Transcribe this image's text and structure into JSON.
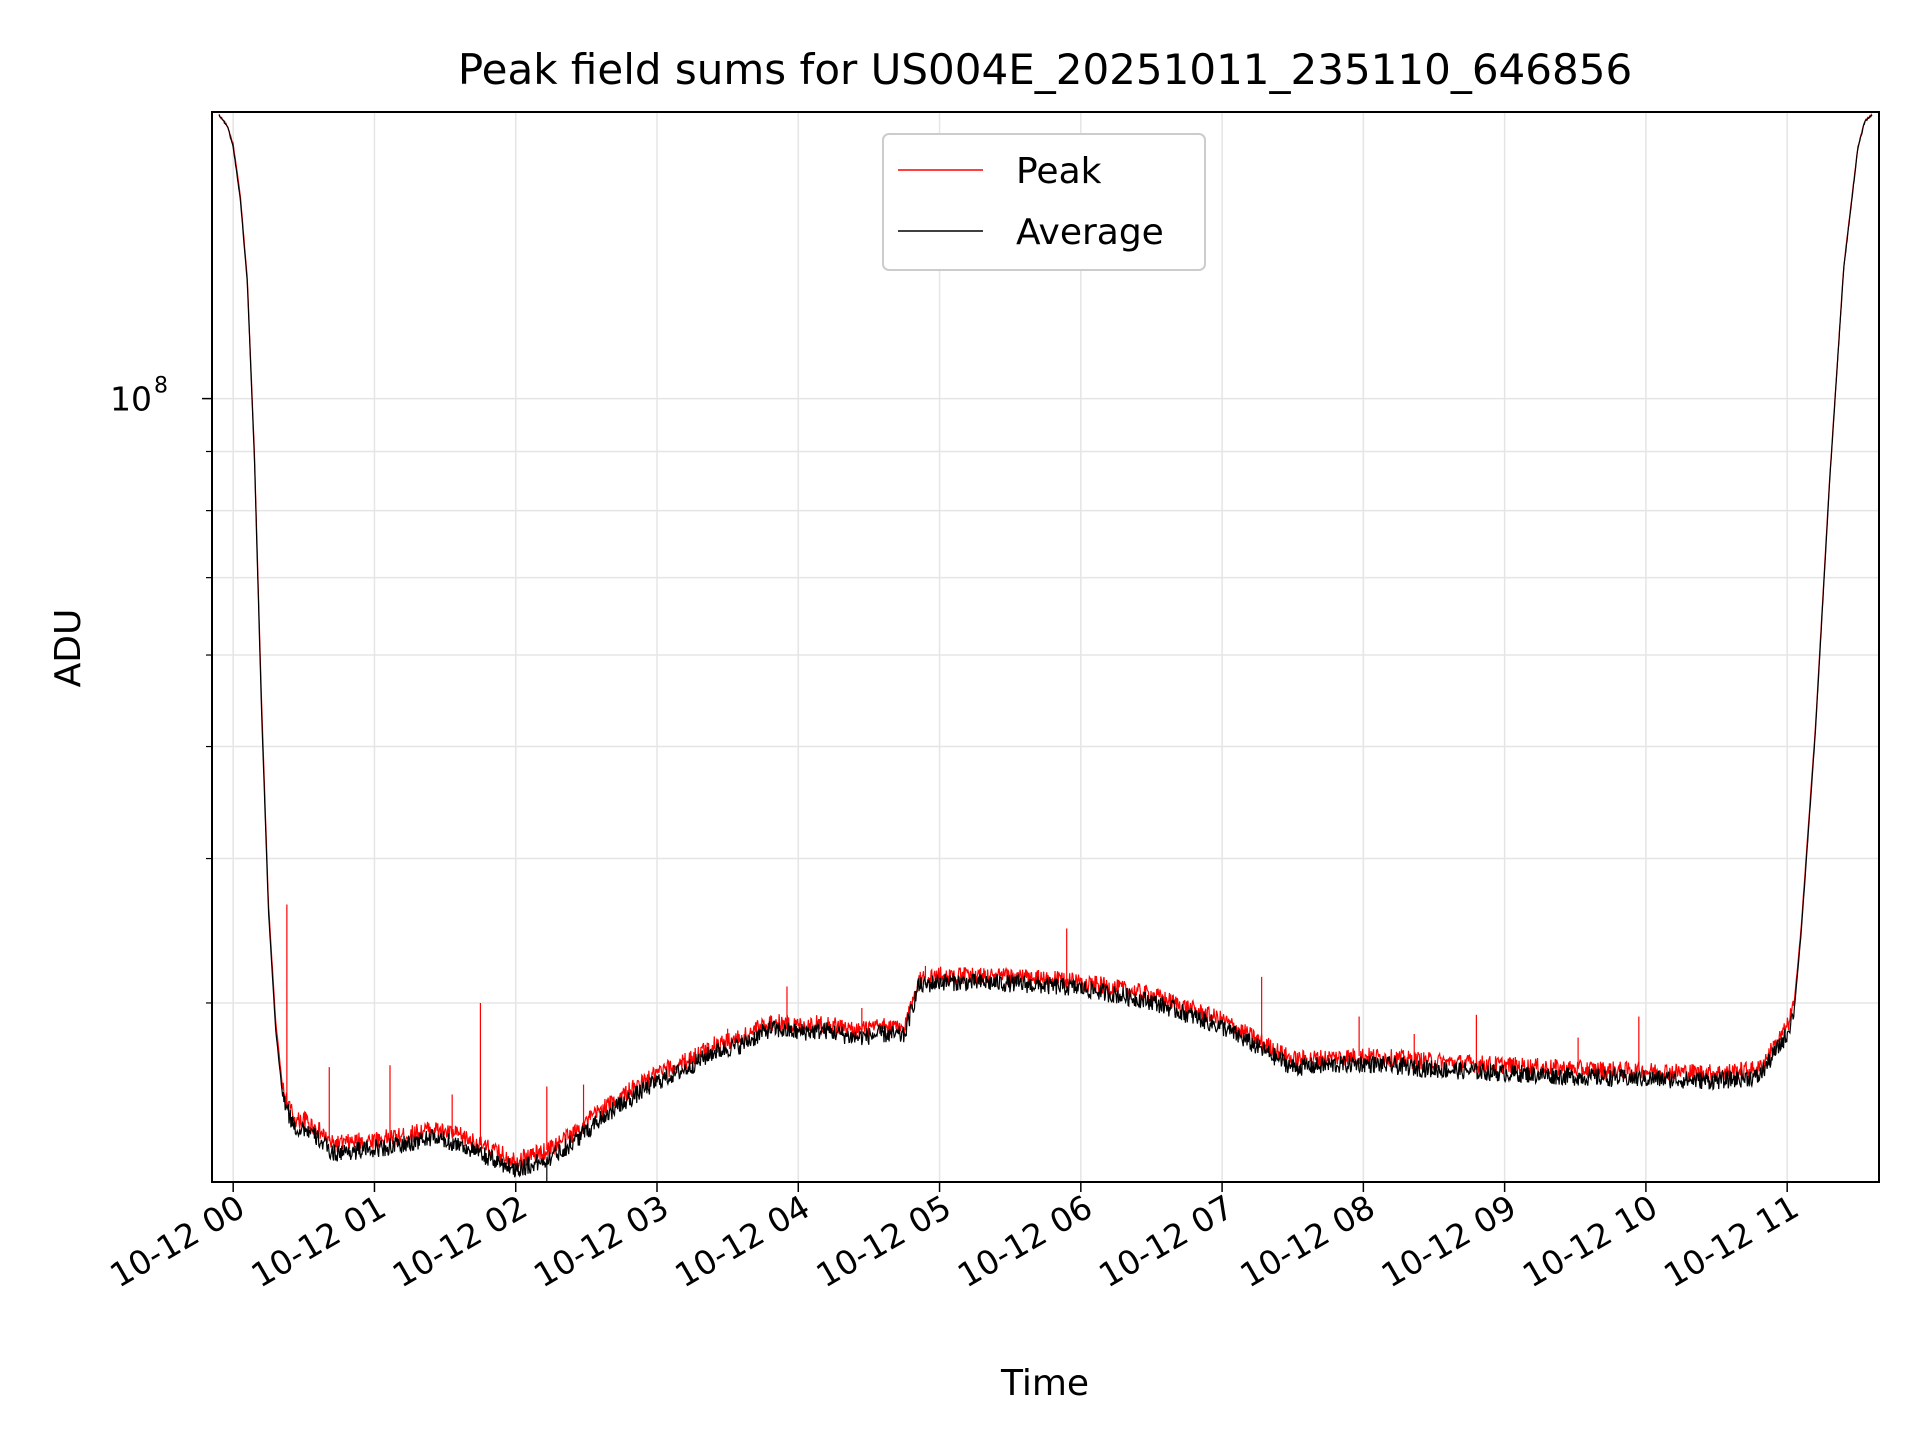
{
  "chart_data": {
    "type": "line",
    "title": "Peak field sums for US004E_20251011_235110_646856",
    "xlabel": "Time",
    "ylabel": "ADU",
    "yscale": "log",
    "grid": true,
    "legend_position": "upper-center",
    "x_units": "hours since 2025-10-12 00:00",
    "xlim": [
      -0.15,
      11.65
    ],
    "ylim": [
      21000000,
      177000000
    ],
    "x_ticks": [
      0,
      1,
      2,
      3,
      4,
      5,
      6,
      7,
      8,
      9,
      10,
      11
    ],
    "x_tick_labels": [
      "10-12 00",
      "10-12 01",
      "10-12 02",
      "10-12 03",
      "10-12 04",
      "10-12 05",
      "10-12 06",
      "10-12 07",
      "10-12 08",
      "10-12 09",
      "10-12 10",
      "10-12 11"
    ],
    "y_major_ticks": [
      100000000
    ],
    "y_major_tick_base": "10",
    "y_major_tick_exp": "8",
    "y_minor_ticks": [
      30000000,
      40000000,
      50000000,
      60000000,
      70000000,
      80000000,
      90000000
    ],
    "series": [
      {
        "name": "Peak",
        "color": "#ff0000",
        "x": [
          -0.1,
          -0.04,
          0.0,
          0.05,
          0.1,
          0.15,
          0.2,
          0.25,
          0.28,
          0.3,
          0.35,
          0.4,
          0.45,
          0.5,
          0.6,
          0.7,
          0.8,
          1.0,
          1.2,
          1.4,
          1.6,
          1.8,
          2.0,
          2.2,
          2.4,
          2.6,
          2.8,
          3.0,
          3.2,
          3.4,
          3.6,
          3.8,
          4.0,
          4.2,
          4.4,
          4.6,
          4.75,
          4.85,
          5.0,
          5.5,
          6.0,
          6.5,
          7.0,
          7.5,
          8.0,
          8.5,
          9.0,
          9.5,
          10.0,
          10.5,
          10.8,
          11.0,
          11.05,
          11.1,
          11.2,
          11.3,
          11.4,
          11.5,
          11.55,
          11.6
        ],
        "y": [
          176000000,
          172000000,
          166000000,
          150000000,
          127000000,
          90000000,
          55000000,
          36500000,
          31800000,
          29000000,
          25300000,
          24300000,
          23700000,
          23800000,
          23300000,
          22650000,
          22700000,
          22850000,
          23000000,
          23350000,
          23050000,
          22450000,
          21950000,
          22300000,
          23100000,
          24250000,
          25150000,
          26050000,
          26700000,
          27600000,
          28000000,
          28900000,
          28700000,
          28800000,
          28400000,
          28600000,
          28500000,
          31400000,
          31700000,
          31600000,
          31300000,
          30500000,
          29000000,
          26800000,
          27000000,
          26700000,
          26500000,
          26300000,
          26200000,
          26100000,
          26300000,
          28600000,
          30000000,
          35000000,
          52000000,
          85000000,
          130000000,
          165000000,
          174000000,
          176000000
        ]
      },
      {
        "name": "Average",
        "color": "#000000",
        "x": [
          -0.1,
          -0.04,
          0.0,
          0.05,
          0.1,
          0.15,
          0.2,
          0.25,
          0.28,
          0.3,
          0.35,
          0.4,
          0.45,
          0.5,
          0.6,
          0.7,
          0.8,
          1.0,
          1.2,
          1.4,
          1.6,
          1.8,
          2.0,
          2.2,
          2.4,
          2.6,
          2.8,
          3.0,
          3.2,
          3.4,
          3.6,
          3.8,
          4.0,
          4.2,
          4.4,
          4.6,
          4.75,
          4.85,
          5.0,
          5.5,
          6.0,
          6.5,
          7.0,
          7.5,
          8.0,
          8.5,
          9.0,
          9.5,
          10.0,
          10.5,
          10.8,
          11.0,
          11.05,
          11.1,
          11.2,
          11.3,
          11.4,
          11.5,
          11.55,
          11.6
        ],
        "y": [
          176000000,
          172000000,
          165000000,
          149000000,
          126000000,
          89000000,
          54000000,
          36000000,
          31300000,
          28500000,
          24900000,
          23900000,
          23300000,
          23400000,
          22900000,
          22250000,
          22300000,
          22450000,
          22600000,
          22950000,
          22650000,
          22050000,
          21550000,
          21900000,
          22700000,
          23850000,
          24750000,
          25650000,
          26300000,
          27200000,
          27600000,
          28500000,
          28300000,
          28400000,
          28000000,
          28200000,
          28100000,
          31000000,
          31300000,
          31200000,
          30900000,
          30100000,
          28600000,
          26400000,
          26600000,
          26300000,
          26100000,
          25900000,
          25800000,
          25700000,
          25900000,
          28200000,
          29600000,
          34600000,
          51500000,
          84500000,
          129500000,
          164500000,
          173800000,
          176000000
        ]
      }
    ],
    "spikes": [
      {
        "series": "Peak",
        "x": 0.38,
        "y": 36500000
      },
      {
        "series": "Peak",
        "x": 0.68,
        "y": 26400000
      },
      {
        "series": "Peak",
        "x": 1.11,
        "y": 26500000
      },
      {
        "series": "Peak",
        "x": 1.55,
        "y": 25000000
      },
      {
        "series": "Peak",
        "x": 1.75,
        "y": 30000000
      },
      {
        "series": "Peak",
        "x": 2.22,
        "y": 25400000
      },
      {
        "series": "Peak",
        "x": 2.48,
        "y": 25500000
      },
      {
        "series": "Peak",
        "x": 3.12,
        "y": 26200000
      },
      {
        "series": "Peak",
        "x": 3.38,
        "y": 27500000
      },
      {
        "series": "Peak",
        "x": 3.5,
        "y": 28500000
      },
      {
        "series": "Peak",
        "x": 3.92,
        "y": 31000000
      },
      {
        "series": "Peak",
        "x": 4.45,
        "y": 29700000
      },
      {
        "series": "Peak",
        "x": 4.9,
        "y": 32300000
      },
      {
        "series": "Peak",
        "x": 5.9,
        "y": 34800000
      },
      {
        "series": "Peak",
        "x": 7.28,
        "y": 31600000
      },
      {
        "series": "Peak",
        "x": 7.97,
        "y": 29200000
      },
      {
        "series": "Peak",
        "x": 8.36,
        "y": 28200000
      },
      {
        "series": "Peak",
        "x": 8.8,
        "y": 29300000
      },
      {
        "series": "Peak",
        "x": 9.52,
        "y": 28000000
      },
      {
        "series": "Peak",
        "x": 9.95,
        "y": 29200000
      },
      {
        "series": "Average",
        "x": 2.22,
        "y": 20500000
      }
    ]
  }
}
